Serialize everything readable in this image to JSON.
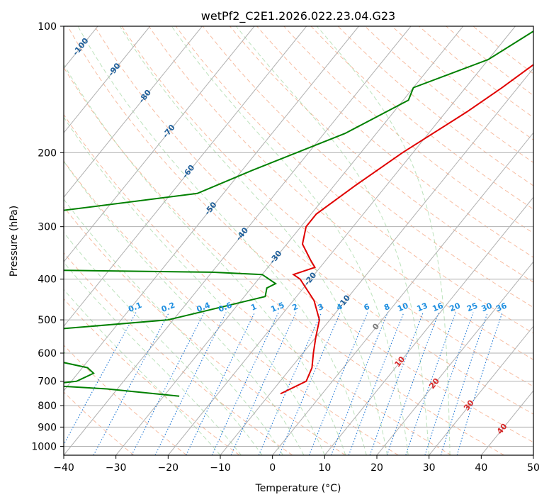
{
  "chart_data": {
    "type": "line",
    "chart_kind": "skew-T log-P diagram",
    "title": "wetPf2_C2E1.2026.022.23.04.G23",
    "xlabel": "Temperature (°C)",
    "ylabel": "Pressure (hPa)",
    "xlim": [
      -40,
      50
    ],
    "ylim": [
      1050,
      100
    ],
    "y_scale": "log",
    "grid": true,
    "x_ticks": [
      -40,
      -30,
      -20,
      -10,
      0,
      10,
      20,
      30,
      40,
      50
    ],
    "x_tick_labels": [
      "−40",
      "−30",
      "−20",
      "−10",
      "0",
      "10",
      "20",
      "30",
      "40",
      "50"
    ],
    "y_ticks": [
      100,
      200,
      300,
      400,
      500,
      600,
      700,
      800,
      900,
      1000
    ],
    "y_tick_labels": [
      "100",
      "200",
      "300",
      "400",
      "500",
      "600",
      "700",
      "800",
      "900",
      "1000"
    ],
    "skew_isotherm_labels": [
      {
        "text": "-100",
        "temp": -100,
        "pressure": 112
      },
      {
        "text": "-90",
        "temp": -90,
        "pressure": 127
      },
      {
        "text": "-80",
        "temp": -80,
        "pressure": 147
      },
      {
        "text": "-70",
        "temp": -70,
        "pressure": 178
      },
      {
        "text": "-60",
        "temp": -60,
        "pressure": 222
      },
      {
        "text": "-50",
        "temp": -50,
        "pressure": 272
      },
      {
        "text": "-40",
        "temp": -40,
        "pressure": 313
      },
      {
        "text": "-30",
        "temp": -30,
        "pressure": 355
      },
      {
        "text": "-20",
        "temp": -20,
        "pressure": 400
      },
      {
        "text": "-10",
        "temp": -10,
        "pressure": 453
      }
    ],
    "positive_isotherm_labels": [
      {
        "text": "0",
        "temp": 0,
        "pressure": 520
      },
      {
        "text": "10",
        "temp": 10,
        "pressure": 630
      },
      {
        "text": "20",
        "temp": 20,
        "pressure": 710
      },
      {
        "text": "30",
        "temp": 30,
        "pressure": 800
      },
      {
        "text": "40",
        "temp": 40,
        "pressure": 910
      }
    ],
    "mixing_ratio_labels": [
      "0.1",
      "0.2",
      "0.4",
      "0.6",
      "1",
      "1.5",
      "2",
      "3",
      "4",
      "6",
      "8",
      "10",
      "13",
      "16",
      "20",
      "25",
      "30",
      "36"
    ],
    "mixing_ratio_values": [
      0.1,
      0.2,
      0.4,
      0.6,
      1,
      1.5,
      2,
      3,
      4,
      6,
      8,
      10,
      13,
      16,
      20,
      25,
      30,
      36
    ],
    "mixing_ratio_label_pressure": 480,
    "series": [
      {
        "role": "temperature",
        "color": "#e00000",
        "points": [
          [
            -7,
            100
          ],
          [
            -10,
            120
          ],
          [
            -13,
            140
          ],
          [
            -16,
            160
          ],
          [
            -22,
            200
          ],
          [
            -26,
            240
          ],
          [
            -29,
            280
          ],
          [
            -29,
            300
          ],
          [
            -27,
            330
          ],
          [
            -23,
            360
          ],
          [
            -21,
            375
          ],
          [
            -24,
            390
          ],
          [
            -22,
            400
          ],
          [
            -16,
            450
          ],
          [
            -12,
            500
          ],
          [
            -10,
            550
          ],
          [
            -8,
            600
          ],
          [
            -6,
            650
          ],
          [
            -5,
            700
          ],
          [
            -8,
            750
          ]
        ]
      },
      {
        "role": "dewpoint",
        "color": "#008000",
        "points": [
          [
            -15,
            100
          ],
          [
            -20,
            120
          ],
          [
            -30,
            140
          ],
          [
            -29,
            150
          ],
          [
            -36,
            180
          ],
          [
            -48,
            220
          ],
          [
            -55,
            250
          ],
          [
            -83,
            280
          ],
          [
            -95,
            330
          ],
          [
            -92,
            370
          ],
          [
            -77,
            380
          ],
          [
            -40,
            385
          ],
          [
            -30,
            390
          ],
          [
            -26,
            410
          ],
          [
            -27,
            420
          ],
          [
            -26,
            440
          ],
          [
            -41,
            500
          ],
          [
            -71,
            540
          ],
          [
            -66,
            550
          ],
          [
            -62,
            580
          ],
          [
            -56,
            600
          ],
          [
            -58,
            620
          ],
          [
            -49,
            650
          ],
          [
            -47,
            670
          ],
          [
            -49,
            700
          ],
          [
            -55,
            715
          ],
          [
            -42,
            730
          ],
          [
            -27,
            760
          ]
        ]
      }
    ]
  }
}
